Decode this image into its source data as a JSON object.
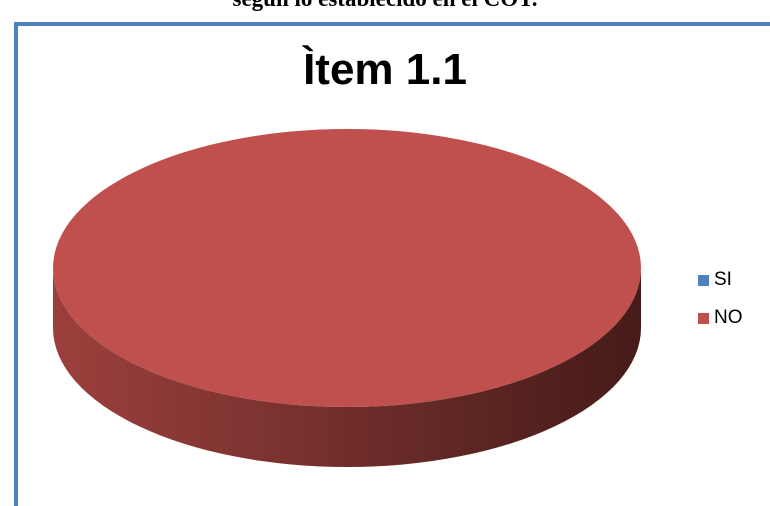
{
  "header": {
    "partial_text": "según lo establecido en el COT."
  },
  "chart_data": {
    "type": "pie",
    "title": "Ìtem 1.1",
    "categories": [
      "SI",
      "NO"
    ],
    "values": [
      0,
      100
    ],
    "colors": {
      "SI": "#4f81bd",
      "NO": "#c0504d",
      "frame": "#4f81bd"
    },
    "legend_position": "right",
    "style": "3d"
  }
}
